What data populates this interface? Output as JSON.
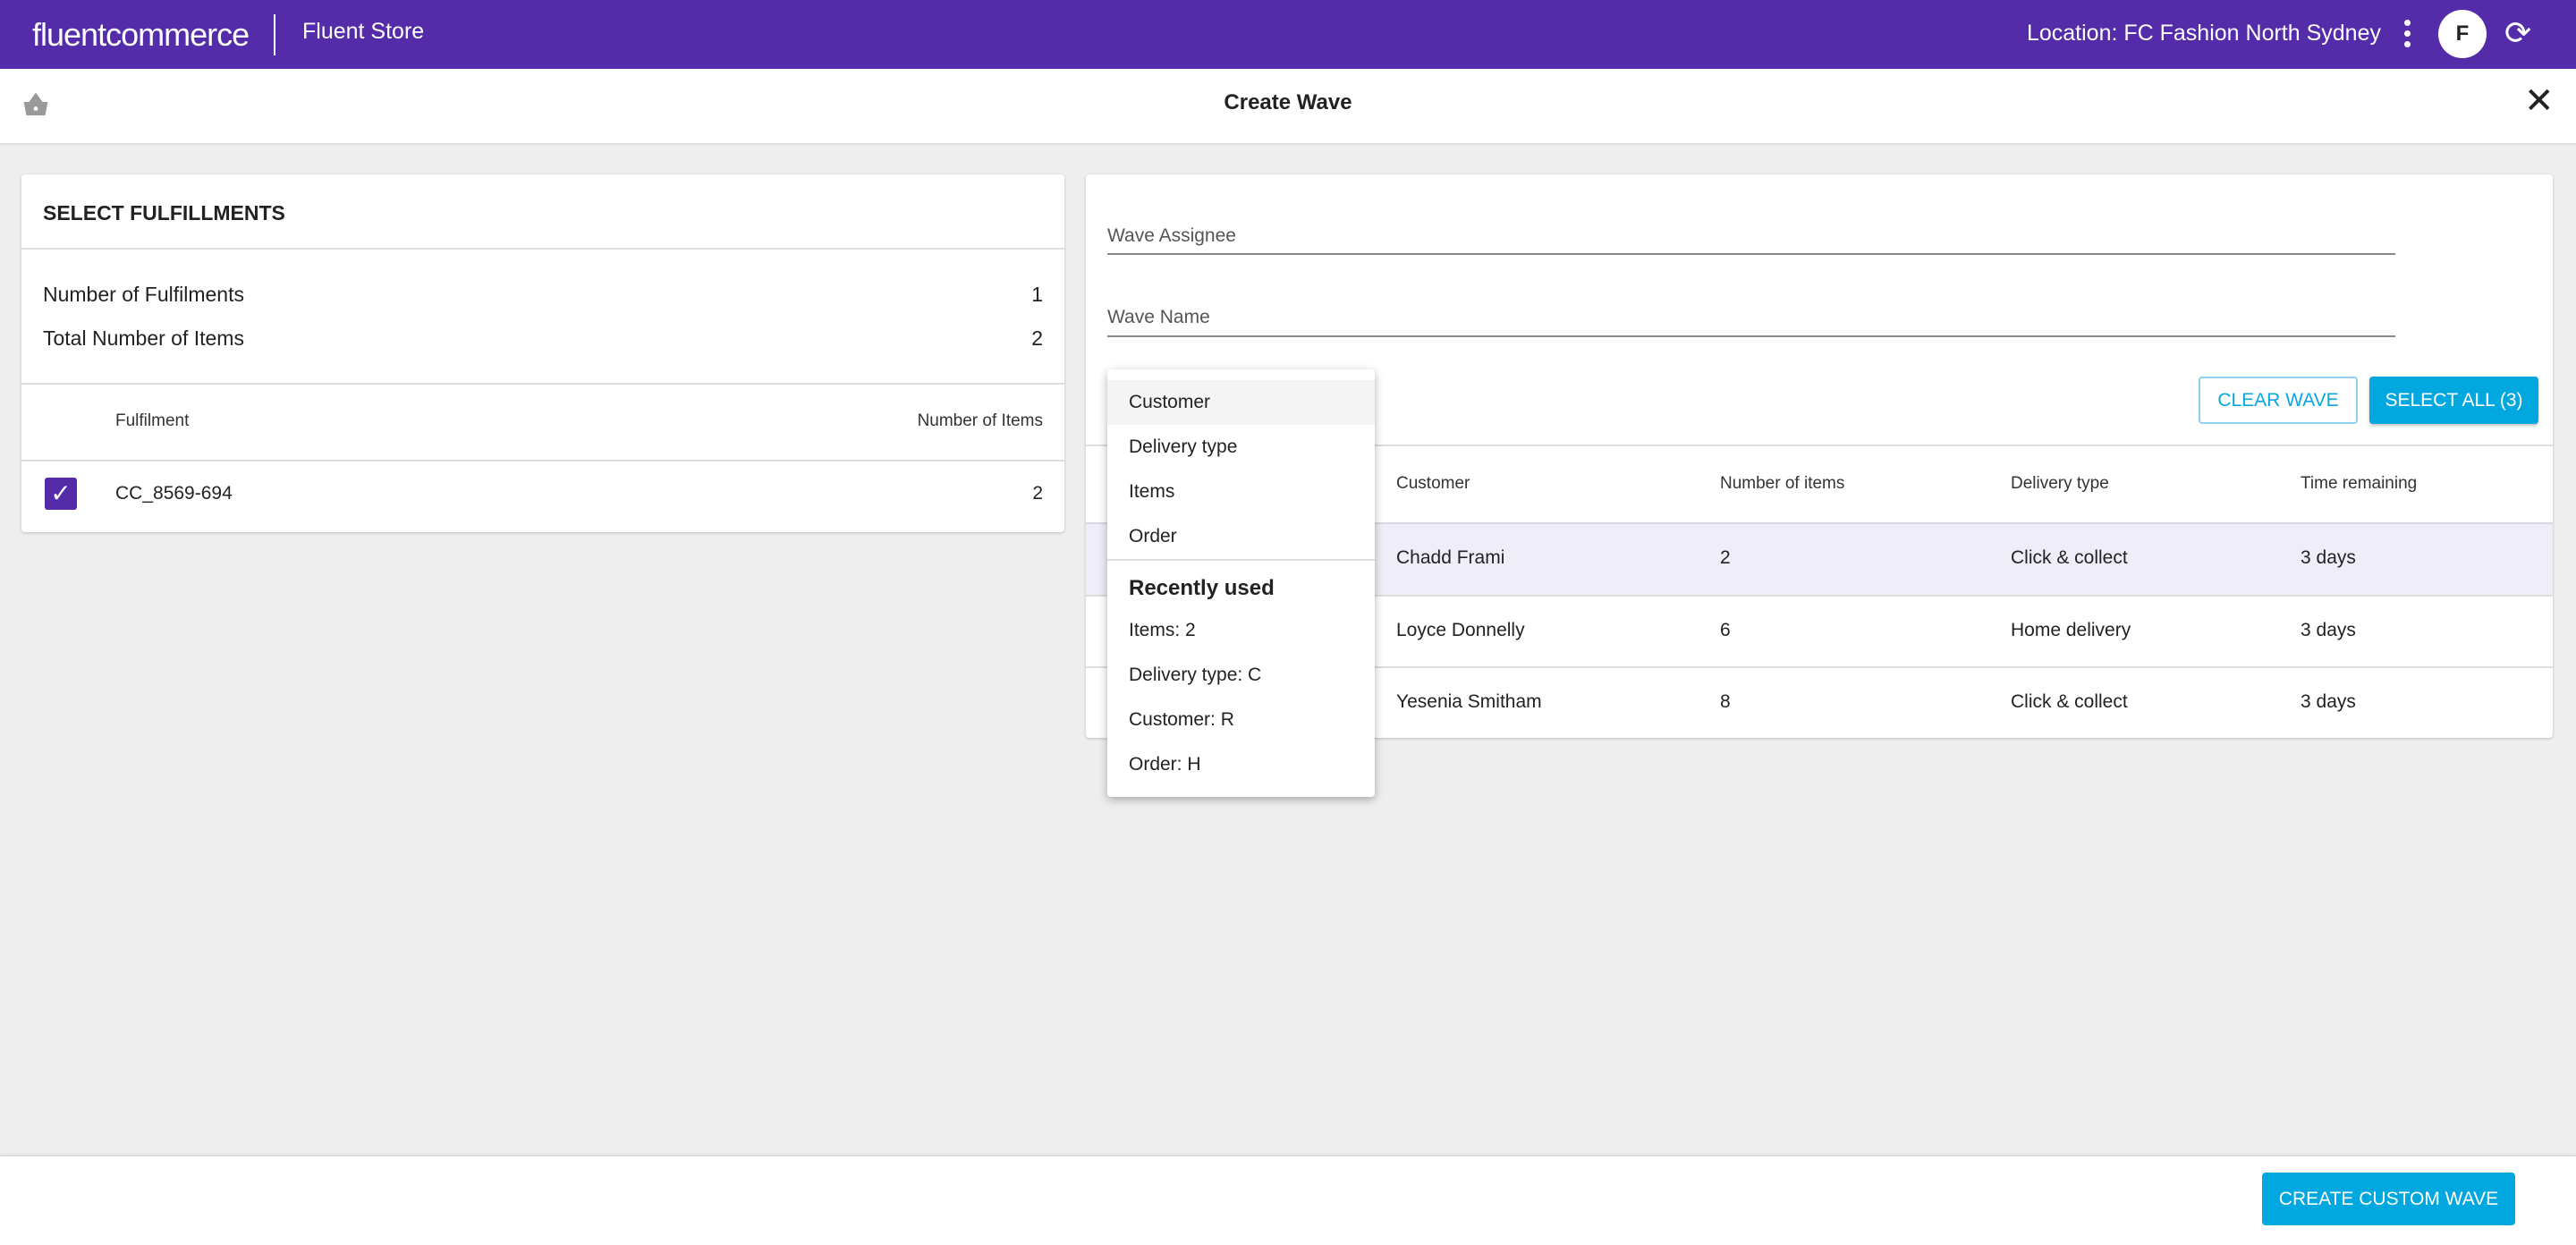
{
  "header": {
    "logo": "fluentcommerce",
    "app_name": "Fluent Store",
    "location": "Location: FC Fashion North Sydney",
    "avatar_initial": "F",
    "brand_color": "#542ba8"
  },
  "subheader": {
    "title": "Create Wave"
  },
  "left_panel": {
    "title": "SELECT FULFILLMENTS",
    "summary": [
      {
        "label": "Number of Fulfilments",
        "value": "1"
      },
      {
        "label": "Total Number of Items",
        "value": "2"
      }
    ],
    "columns": [
      "Fulfilment",
      "Number of Items"
    ],
    "rows": [
      {
        "id": "CC_8569-694",
        "items": "2",
        "checked": true
      }
    ]
  },
  "right_panel": {
    "wave_assignee_label": "Wave Assignee",
    "wave_name_label": "Wave Name",
    "clear_wave": "CLEAR WAVE",
    "select_all": "SELECT ALL (3)",
    "accent_color": "#00a8df",
    "columns": [
      "Customer",
      "Number of items",
      "Delivery type",
      "Time remaining"
    ],
    "rows": [
      {
        "customer": "Chadd Frami",
        "items": "2",
        "delivery": "Click & collect",
        "time": "3 days"
      },
      {
        "customer": "Loyce Donnelly",
        "items": "6",
        "delivery": "Home delivery",
        "time": "3 days"
      },
      {
        "customer": "Yesenia Smitham",
        "items": "8",
        "delivery": "Click & collect",
        "time": "3 days"
      }
    ]
  },
  "dropdown": {
    "options": [
      "Customer",
      "Delivery type",
      "Items",
      "Order"
    ],
    "recent_heading": "Recently used",
    "recent": [
      "Items: 2",
      "Delivery type: C",
      "Customer: R",
      "Order: H"
    ]
  },
  "footer": {
    "create_button": "CREATE CUSTOM WAVE"
  }
}
